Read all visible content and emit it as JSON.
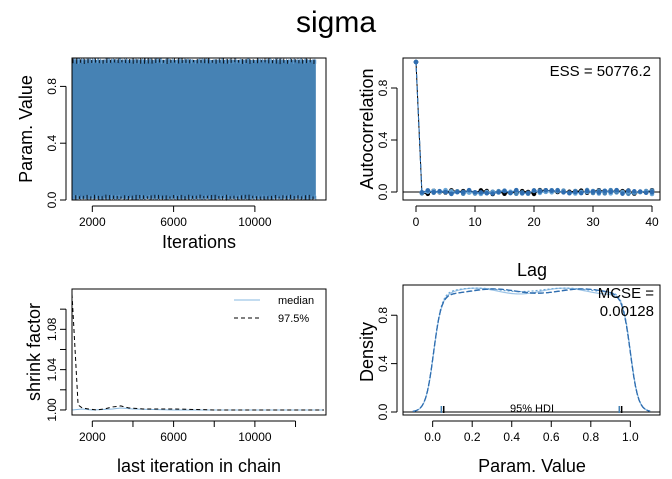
{
  "title": "sigma",
  "chart_data": [
    {
      "id": "trace",
      "type": "line",
      "xlabel": "Iterations",
      "ylabel": "Param. Value",
      "xlim": [
        1000,
        13500
      ],
      "ylim": [
        0,
        1
      ],
      "xticks": [
        "2000",
        "6000",
        "10000"
      ],
      "xtick_values": [
        2000,
        6000,
        10000
      ],
      "yticks": [
        "0.0",
        "0.4",
        "0.8"
      ],
      "ytick_values": [
        0,
        0.4,
        0.8
      ],
      "series_colors": [
        "#4682b4",
        "#000000",
        "#3a6fa8",
        "#6aa6d6"
      ]
    },
    {
      "id": "autocorrelation",
      "type": "scatter",
      "xlabel": "Lag",
      "ylabel": "Autocorrelation",
      "xlim": [
        0,
        40
      ],
      "ylim": [
        0,
        1
      ],
      "xticks": [
        "0",
        "10",
        "20",
        "30",
        "40"
      ],
      "xtick_values": [
        0,
        10,
        20,
        30,
        40
      ],
      "yticks": [
        "0.0",
        "0.4",
        "0.8"
      ],
      "ytick_values": [
        0,
        0.4,
        0.8
      ],
      "annotation": "ESS = 50776.2",
      "lag0": 1.0
    },
    {
      "id": "shrink",
      "type": "line",
      "xlabel": "last iteration in chain",
      "ylabel": "shrink factor",
      "xlim": [
        1000,
        13500
      ],
      "ylim": [
        0.995,
        1.12
      ],
      "xticks": [
        "2000",
        "6000",
        "10000"
      ],
      "xtick_values": [
        2000,
        6000,
        10000
      ],
      "yticks": [
        "1.00",
        "1.04",
        "1.08"
      ],
      "ytick_values": [
        1.0,
        1.04,
        1.08
      ],
      "legend": [
        {
          "name": "median",
          "color": "#87b8e0",
          "dash": "solid"
        },
        {
          "name": "97.5%",
          "color": "#000000",
          "dash": "dashed"
        }
      ],
      "series": [
        {
          "name": "median",
          "x": [
            1000,
            1500,
            2000,
            3000,
            3400,
            4000,
            6000,
            8000,
            10000,
            12000,
            13400
          ],
          "values": [
            1.0,
            1.001,
            1.0,
            1.001,
            1.002,
            1.001,
            1.0,
            1.0,
            1.0,
            1.0,
            1.0
          ]
        },
        {
          "name": "97.5%",
          "x": [
            1000,
            1300,
            1500,
            1800,
            2200,
            2600,
            3000,
            3400,
            3800,
            4500,
            6000,
            8000,
            10000,
            12000,
            13400
          ],
          "values": [
            1.115,
            1.005,
            1.002,
            1.001,
            1.0,
            1.001,
            1.003,
            1.004,
            1.002,
            1.001,
            1.001,
            1.0,
            1.0,
            1.0,
            1.0
          ]
        }
      ]
    },
    {
      "id": "density",
      "type": "line",
      "xlabel": "Param. Value",
      "ylabel": "Density",
      "xlim": [
        -0.15,
        1.15
      ],
      "ylim": [
        0,
        1.05
      ],
      "xticks": [
        "0.0",
        "0.2",
        "0.4",
        "0.6",
        "0.8",
        "1.0"
      ],
      "xtick_values": [
        0,
        0.2,
        0.4,
        0.6,
        0.8,
        1.0
      ],
      "yticks": [
        "0.0",
        "0.4",
        "0.8"
      ],
      "ytick_values": [
        0,
        0.4,
        0.8
      ],
      "annotation_line1": "MCSE =",
      "annotation_line2": "0.00128",
      "hdi_label": "95% HDI",
      "hdi": [
        0.05,
        0.95
      ]
    }
  ]
}
